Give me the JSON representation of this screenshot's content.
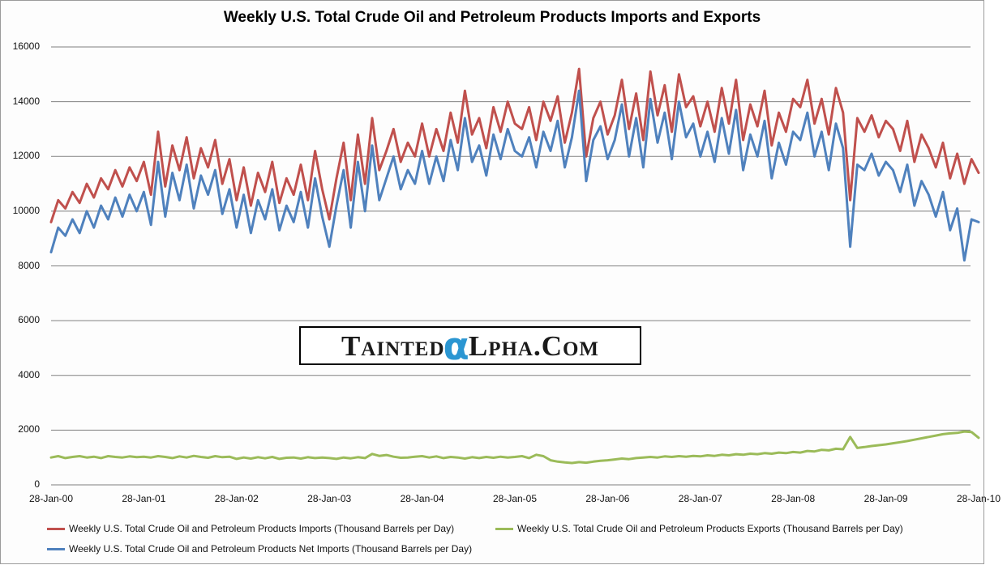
{
  "title": "Weekly U.S. Total Crude Oil and Petroleum Products Imports and Exports",
  "watermark": {
    "part1": "Tainted",
    "alpha": "α",
    "part2": "Lpha.Com"
  },
  "colors": {
    "imports": "#C0504D",
    "exports": "#9BBB59",
    "net_imports": "#4F81BD",
    "gridline": "#808080",
    "frame_border": "#9b9b9b",
    "watermark_alpha": "#2b96d2"
  },
  "chart_data": {
    "type": "line",
    "title": "Weekly U.S. Total Crude Oil and Petroleum Products Imports and Exports",
    "xlabel": "",
    "ylabel": "",
    "grid": "horizontal",
    "legend_position": "bottom",
    "y_axis": {
      "ylim": [
        0,
        16000
      ],
      "ticks": [
        16000,
        14000,
        12000,
        10000,
        8000,
        6000,
        4000,
        2000,
        0
      ]
    },
    "x_axis": {
      "tick_labels": [
        "28-Jan-00",
        "28-Jan-01",
        "28-Jan-02",
        "28-Jan-03",
        "28-Jan-04",
        "28-Jan-05",
        "28-Jan-06",
        "28-Jan-07",
        "28-Jan-08",
        "28-Jan-09",
        "28-Jan-10"
      ]
    },
    "series": [
      {
        "id": "imports",
        "name": "Weekly U.S. Total Crude Oil and Petroleum Products Imports  (Thousand  Barrels per Day)",
        "color": "#C0504D",
        "values": [
          9600,
          10400,
          10100,
          10700,
          10300,
          11000,
          10500,
          11200,
          10800,
          11500,
          10900,
          11600,
          11100,
          11800,
          10600,
          12900,
          10900,
          12400,
          11500,
          12700,
          11200,
          12300,
          11600,
          12600,
          11000,
          11900,
          10400,
          11600,
          10200,
          11400,
          10700,
          11800,
          10300,
          11200,
          10600,
          11700,
          10400,
          12200,
          10800,
          9700,
          11200,
          12500,
          10400,
          12800,
          11000,
          13400,
          11500,
          12200,
          13000,
          11800,
          12500,
          12000,
          13200,
          12000,
          13000,
          12200,
          13600,
          12500,
          14400,
          12800,
          13400,
          12300,
          13800,
          12900,
          14000,
          13200,
          13000,
          13800,
          12600,
          14000,
          13300,
          14200,
          12500,
          13600,
          15200,
          12000,
          13400,
          14000,
          12800,
          13500,
          14800,
          13000,
          14300,
          12600,
          15100,
          13500,
          14600,
          12900,
          15000,
          13800,
          14200,
          13100,
          14000,
          12900,
          14500,
          13200,
          14800,
          12600,
          13900,
          13100,
          14400,
          12400,
          13600,
          12900,
          14100,
          13800,
          14800,
          13200,
          14100,
          12800,
          14500,
          13600,
          10400,
          13400,
          12900,
          13500,
          12700,
          13300,
          13000,
          12200,
          13300,
          11800,
          12800,
          12300,
          11600,
          12500,
          11200,
          12100,
          11000,
          11900,
          11400
        ]
      },
      {
        "id": "exports",
        "name": "Weekly U.S. Total Crude Oil and Petroleum Products Exports  (Thousand Barrels per Day)",
        "color": "#9BBB59",
        "values": [
          1000,
          1050,
          980,
          1020,
          1050,
          1000,
          1030,
          980,
          1050,
          1020,
          1000,
          1040,
          1010,
          1030,
          1000,
          1050,
          1020,
          980,
          1040,
          1000,
          1060,
          1020,
          990,
          1050,
          1010,
          1030,
          950,
          1000,
          960,
          1010,
          970,
          1020,
          950,
          990,
          1000,
          960,
          1010,
          980,
          1000,
          980,
          950,
          1000,
          970,
          1010,
          980,
          1130,
          1060,
          1090,
          1030,
          990,
          1000,
          1030,
          1050,
          1000,
          1040,
          980,
          1020,
          1000,
          960,
          1010,
          980,
          1020,
          990,
          1030,
          1000,
          1020,
          1050,
          980,
          1100,
          1050,
          900,
          850,
          820,
          800,
          830,
          810,
          850,
          880,
          900,
          930,
          960,
          940,
          980,
          1000,
          1020,
          1000,
          1040,
          1020,
          1050,
          1030,
          1060,
          1040,
          1080,
          1060,
          1100,
          1080,
          1120,
          1100,
          1140,
          1120,
          1160,
          1140,
          1180,
          1160,
          1200,
          1180,
          1240,
          1220,
          1280,
          1260,
          1320,
          1300,
          1750,
          1350,
          1380,
          1420,
          1450,
          1480,
          1520,
          1560,
          1600,
          1650,
          1700,
          1750,
          1800,
          1850,
          1880,
          1900,
          1950,
          1930,
          1720
        ]
      },
      {
        "id": "net-imports",
        "name": "Weekly U.S. Total Crude Oil and Petroleum Products Net Imports  (Thousand  Barrels per Day)",
        "color": "#4F81BD",
        "values": [
          8500,
          9400,
          9100,
          9700,
          9200,
          10000,
          9400,
          10200,
          9700,
          10500,
          9800,
          10600,
          10000,
          10700,
          9500,
          11800,
          9800,
          11400,
          10400,
          11700,
          10100,
          11300,
          10600,
          11500,
          9900,
          10800,
          9400,
          10600,
          9200,
          10400,
          9700,
          10800,
          9300,
          10200,
          9600,
          10700,
          9400,
          11200,
          9800,
          8700,
          10200,
          11500,
          9400,
          11800,
          10000,
          12400,
          10400,
          11200,
          12000,
          10800,
          11500,
          11000,
          12200,
          11000,
          12000,
          11100,
          12600,
          11500,
          13400,
          11800,
          12400,
          11300,
          12800,
          11900,
          13000,
          12200,
          12000,
          12700,
          11600,
          12900,
          12200,
          13300,
          11600,
          12700,
          14400,
          11100,
          12600,
          13100,
          11900,
          12600,
          13900,
          12000,
          13400,
          11600,
          14100,
          12500,
          13600,
          11900,
          14000,
          12700,
          13200,
          12000,
          12900,
          11800,
          13400,
          12100,
          13700,
          11500,
          12800,
          12000,
          13300,
          11200,
          12500,
          11700,
          12900,
          12600,
          13600,
          12000,
          12900,
          11500,
          13200,
          12300,
          8700,
          11700,
          11500,
          12100,
          11300,
          11800,
          11500,
          10700,
          11700,
          10200,
          11100,
          10600,
          9800,
          10700,
          9300,
          10100,
          8200,
          9700,
          9600
        ]
      }
    ]
  }
}
